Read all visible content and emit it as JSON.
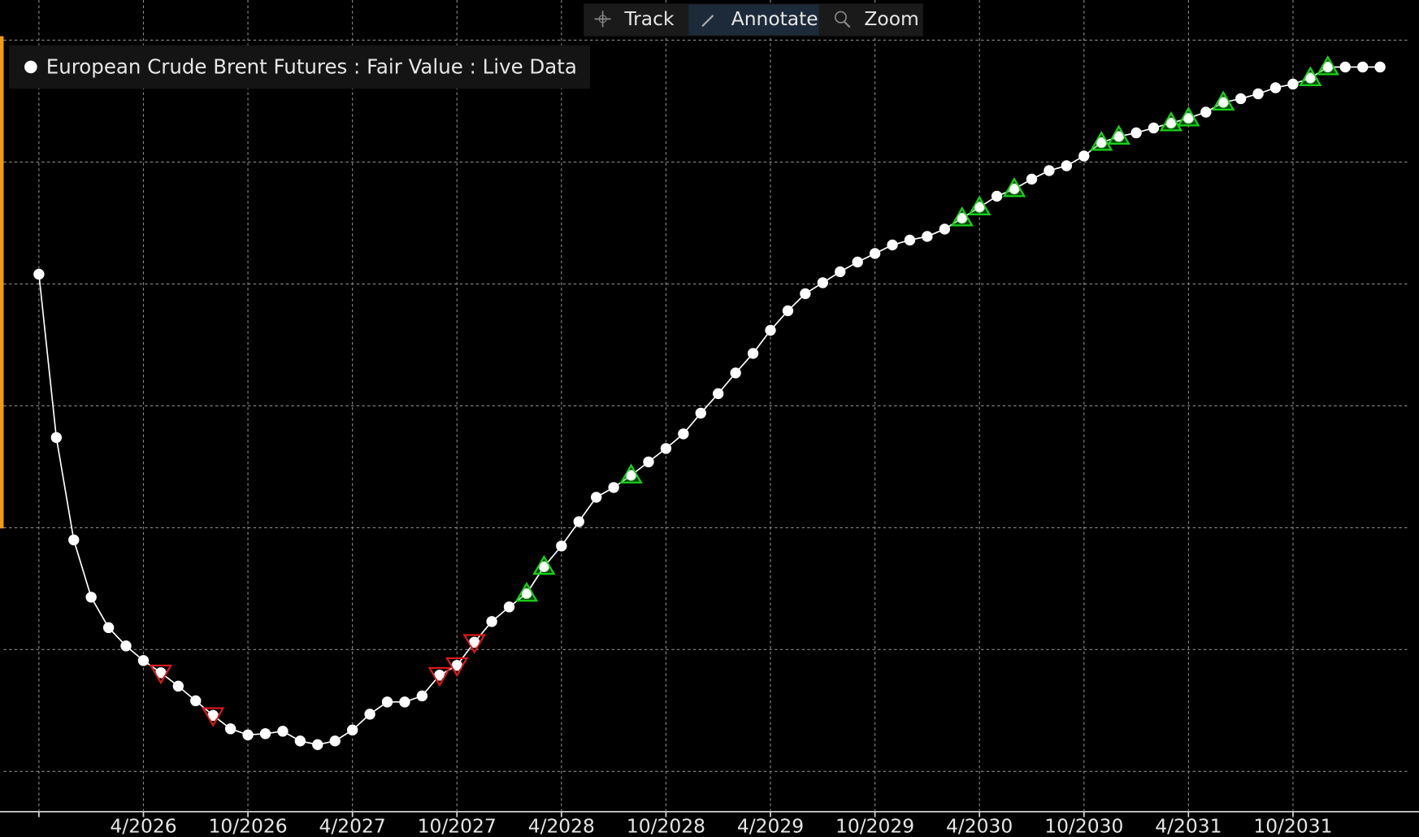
{
  "toolbar": {
    "buttons": [
      "Track",
      "Annotate",
      "Zoom"
    ]
  },
  "chart_data": {
    "type": "line",
    "categories": [
      null,
      null,
      null,
      null,
      null,
      null,
      "4/2026",
      null,
      null,
      null,
      null,
      null,
      "10/2026",
      null,
      null,
      null,
      null,
      null,
      "4/2027",
      null,
      null,
      null,
      null,
      null,
      "10/2027",
      null,
      null,
      null,
      null,
      null,
      "4/2028",
      null,
      null,
      null,
      null,
      null,
      "10/2028",
      null,
      null,
      null,
      null,
      null,
      "4/2029",
      null,
      null,
      null,
      null,
      null,
      "10/2029",
      null,
      null,
      null,
      null,
      null,
      "4/2030",
      null,
      null,
      null,
      null,
      null,
      "10/2030",
      null,
      null,
      null,
      null,
      null,
      "4/2031",
      null,
      null,
      null,
      null,
      null,
      "10/2031",
      null,
      null,
      null,
      null,
      null
    ],
    "series": [
      {
        "name": "European Crude Brent Futures : Fair Value : Live Data",
        "color": "#ffffff",
        "values": [
          4.08,
          2.74,
          1.9,
          1.43,
          1.18,
          1.03,
          0.91,
          0.81,
          0.7,
          0.58,
          0.46,
          0.35,
          0.3,
          0.31,
          0.33,
          0.25,
          0.22,
          0.25,
          0.34,
          0.47,
          0.57,
          0.57,
          0.62,
          0.79,
          0.87,
          1.06,
          1.23,
          1.35,
          1.46,
          1.68,
          1.85,
          2.05,
          2.25,
          2.33,
          2.43,
          2.54,
          2.65,
          2.77,
          2.94,
          3.1,
          3.27,
          3.43,
          3.62,
          3.78,
          3.92,
          4.01,
          4.1,
          4.18,
          4.25,
          4.32,
          4.36,
          4.39,
          4.45,
          4.54,
          4.63,
          4.72,
          4.78,
          4.86,
          4.93,
          4.97,
          5.05,
          5.16,
          5.21,
          5.24,
          5.28,
          5.32,
          5.36,
          5.41,
          5.49,
          5.52,
          5.56,
          5.61,
          5.64,
          5.69,
          5.78,
          5.78,
          5.78,
          5.78
        ]
      }
    ],
    "down_markers": {
      "color": "#e01818",
      "indices": [
        7,
        10,
        23,
        24,
        25
      ]
    },
    "up_markers": {
      "color": "#19d219",
      "indices": [
        28,
        29,
        34,
        53,
        54,
        56,
        61,
        62,
        65,
        66,
        68,
        73,
        74
      ]
    },
    "ylim": [
      -0.33,
      6.33
    ],
    "yticks": [
      0,
      1,
      2,
      3,
      4,
      5,
      6
    ],
    "grid": true
  }
}
